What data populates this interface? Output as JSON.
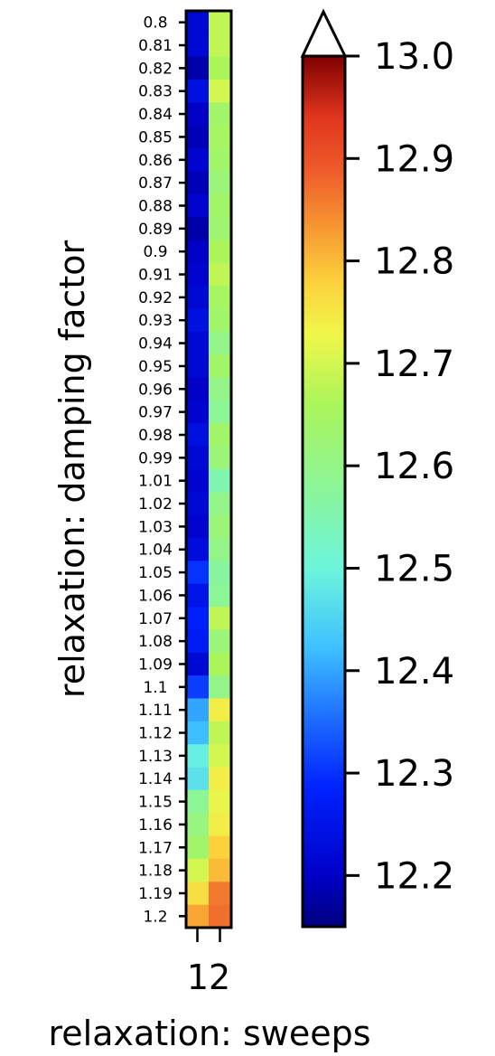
{
  "chart_data": {
    "type": "heatmap",
    "xlabel": "relaxation: sweeps",
    "ylabel": "relaxation: damping factor",
    "x_categories": [
      "",
      "12"
    ],
    "y_categories": [
      "0.8",
      "0.81",
      "0.82",
      "0.83",
      "0.84",
      "0.85",
      "0.86",
      "0.87",
      "0.88",
      "0.89",
      "0.9",
      "0.91",
      "0.92",
      "0.93",
      "0.94",
      "0.95",
      "0.96",
      "0.97",
      "0.98",
      "0.99",
      "1.01",
      "1.02",
      "1.03",
      "1.04",
      "1.05",
      "1.06",
      "1.07",
      "1.08",
      "1.09",
      "1.1",
      "1.11",
      "1.12",
      "1.13",
      "1.14",
      "1.15",
      "1.16",
      "1.17",
      "1.18",
      "1.19",
      "1.2"
    ],
    "values": [
      [
        12.22,
        12.68
      ],
      [
        12.22,
        12.68
      ],
      [
        12.18,
        12.66
      ],
      [
        12.24,
        12.7
      ],
      [
        12.2,
        12.64
      ],
      [
        12.19,
        12.65
      ],
      [
        12.21,
        12.64
      ],
      [
        12.19,
        12.62
      ],
      [
        12.21,
        12.64
      ],
      [
        12.18,
        12.63
      ],
      [
        12.2,
        12.66
      ],
      [
        12.21,
        12.68
      ],
      [
        12.22,
        12.65
      ],
      [
        12.24,
        12.64
      ],
      [
        12.22,
        12.6
      ],
      [
        12.22,
        12.64
      ],
      [
        12.2,
        12.6
      ],
      [
        12.21,
        12.58
      ],
      [
        12.24,
        12.64
      ],
      [
        12.22,
        12.62
      ],
      [
        12.21,
        12.55
      ],
      [
        12.22,
        12.6
      ],
      [
        12.21,
        12.62
      ],
      [
        12.23,
        12.6
      ],
      [
        12.3,
        12.57
      ],
      [
        12.25,
        12.58
      ],
      [
        12.28,
        12.68
      ],
      [
        12.27,
        12.62
      ],
      [
        12.22,
        12.66
      ],
      [
        12.31,
        12.6
      ],
      [
        12.4,
        12.74
      ],
      [
        12.42,
        12.68
      ],
      [
        12.49,
        12.7
      ],
      [
        12.47,
        12.74
      ],
      [
        12.58,
        12.72
      ],
      [
        12.61,
        12.74
      ],
      [
        12.64,
        12.78
      ],
      [
        12.7,
        12.8
      ],
      [
        12.76,
        12.86
      ],
      [
        12.82,
        12.87
      ]
    ],
    "colorbar": {
      "min": 12.15,
      "max": 13.0,
      "ticks": [
        "12.2",
        "12.3",
        "12.4",
        "12.5",
        "12.6",
        "12.7",
        "12.8",
        "12.9",
        "13.0"
      ],
      "tick_values": [
        12.2,
        12.3,
        12.4,
        12.5,
        12.6,
        12.7,
        12.8,
        12.9,
        13.0
      ],
      "extend": "max",
      "colormap": "jet-like"
    }
  }
}
